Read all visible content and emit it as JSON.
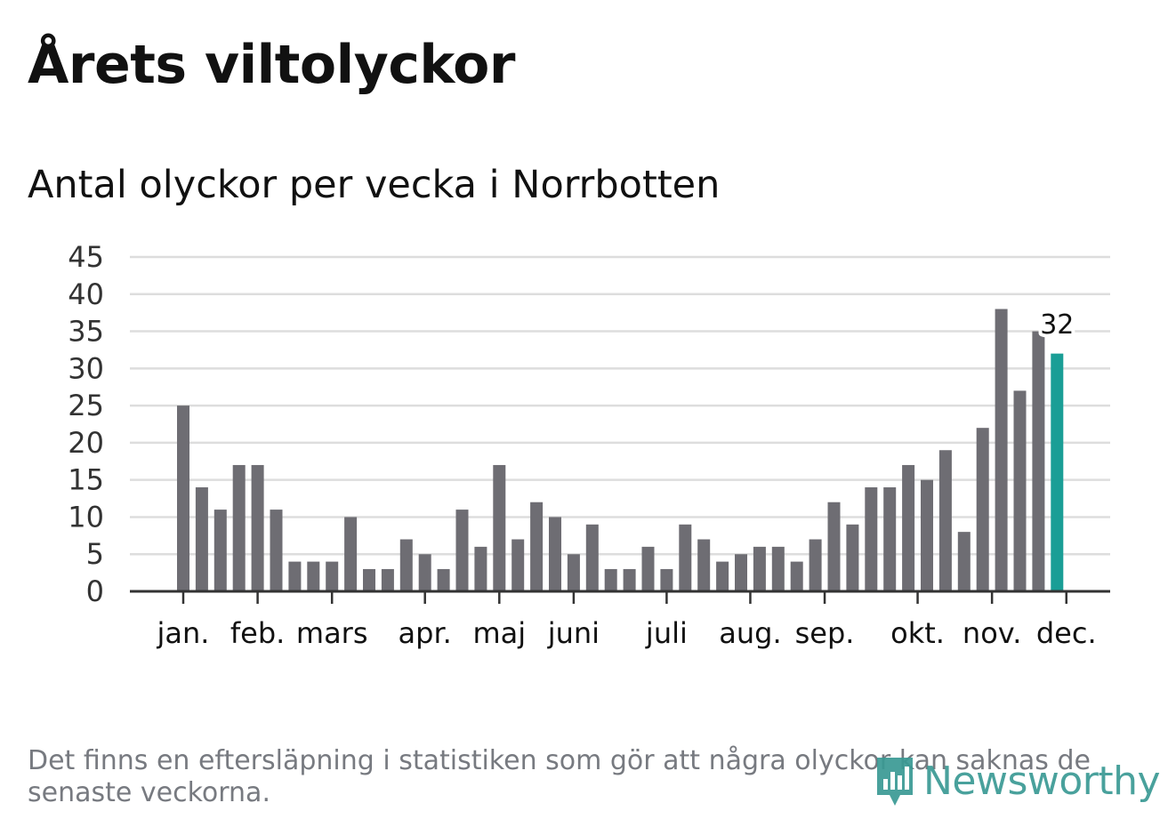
{
  "header": {
    "title": "Årets viltolyckor",
    "subtitle": "Antal olyckor per vecka i Norrbotten"
  },
  "footer": {
    "note": "Det finns en eftersläpning i statistiken som gör att några olyckor kan saknas de senaste veckorna.",
    "brand": "Newsworthy"
  },
  "colors": {
    "bar": "#6e6d73",
    "highlight": "#1a9e96",
    "grid": "#dddddd",
    "axis": "#333333",
    "text": "#111111",
    "muted": "#777a80",
    "brand": "#3a9a94"
  },
  "chart_data": {
    "type": "bar",
    "title": "Antal olyckor per vecka i Norrbotten",
    "xlabel": "",
    "ylabel": "",
    "ylim": [
      0,
      45
    ],
    "yticks": [
      0,
      5,
      10,
      15,
      20,
      25,
      30,
      35,
      40,
      45
    ],
    "grid": true,
    "week_values": [
      25,
      14,
      11,
      17,
      17,
      11,
      4,
      4,
      4,
      10,
      3,
      3,
      7,
      5,
      3,
      11,
      6,
      17,
      7,
      12,
      10,
      5,
      9,
      3,
      3,
      6,
      3,
      9,
      7,
      4,
      5,
      6,
      6,
      4,
      7,
      12,
      9,
      14,
      14,
      17,
      15,
      19,
      8,
      22,
      38,
      27,
      35,
      32
    ],
    "highlight_index": 47,
    "highlight_label": "32",
    "month_labels": [
      {
        "label": "jan.",
        "week": 0.0
      },
      {
        "label": "feb.",
        "week": 4.0
      },
      {
        "label": "mars",
        "week": 8.0
      },
      {
        "label": "apr.",
        "week": 13.0
      },
      {
        "label": "maj",
        "week": 17.0
      },
      {
        "label": "juni",
        "week": 21.0
      },
      {
        "label": "juli",
        "week": 26.0
      },
      {
        "label": "aug.",
        "week": 30.5
      },
      {
        "label": "sep.",
        "week": 34.5
      },
      {
        "label": "okt.",
        "week": 39.5
      },
      {
        "label": "nov.",
        "week": 43.5
      },
      {
        "label": "dec.",
        "week": 47.5
      }
    ]
  }
}
